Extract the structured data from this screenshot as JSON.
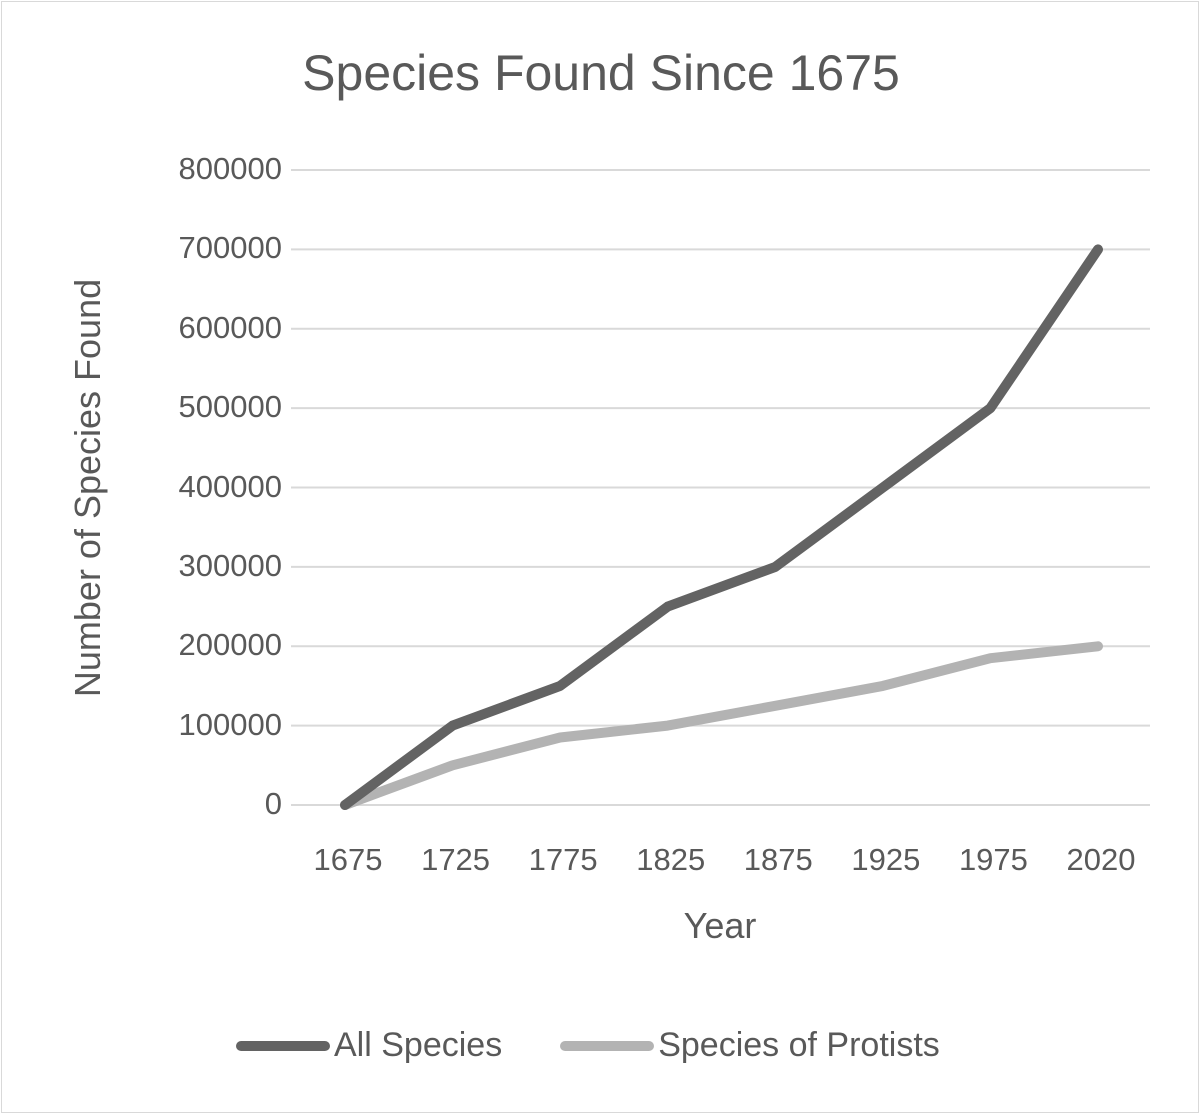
{
  "chart_data": {
    "type": "line",
    "title": "Species Found Since 1675",
    "xlabel": "Year",
    "ylabel": "Number of Species Found",
    "categories": [
      "1675",
      "1725",
      "1775",
      "1825",
      "1875",
      "1925",
      "1975",
      "2020"
    ],
    "series": [
      {
        "name": "All Species",
        "color": "#636363",
        "values": [
          0,
          100000,
          150000,
          250000,
          300000,
          400000,
          500000,
          700000
        ]
      },
      {
        "name": "Species of Protists",
        "color": "#b3b3b3",
        "values": [
          0,
          50000,
          85000,
          100000,
          125000,
          150000,
          185000,
          200000
        ]
      }
    ],
    "ylim": [
      0,
      800000
    ],
    "yticks": [
      "0",
      "100000",
      "200000",
      "300000",
      "400000",
      "500000",
      "600000",
      "700000",
      "800000"
    ],
    "grid": true,
    "legend_position": "bottom"
  }
}
